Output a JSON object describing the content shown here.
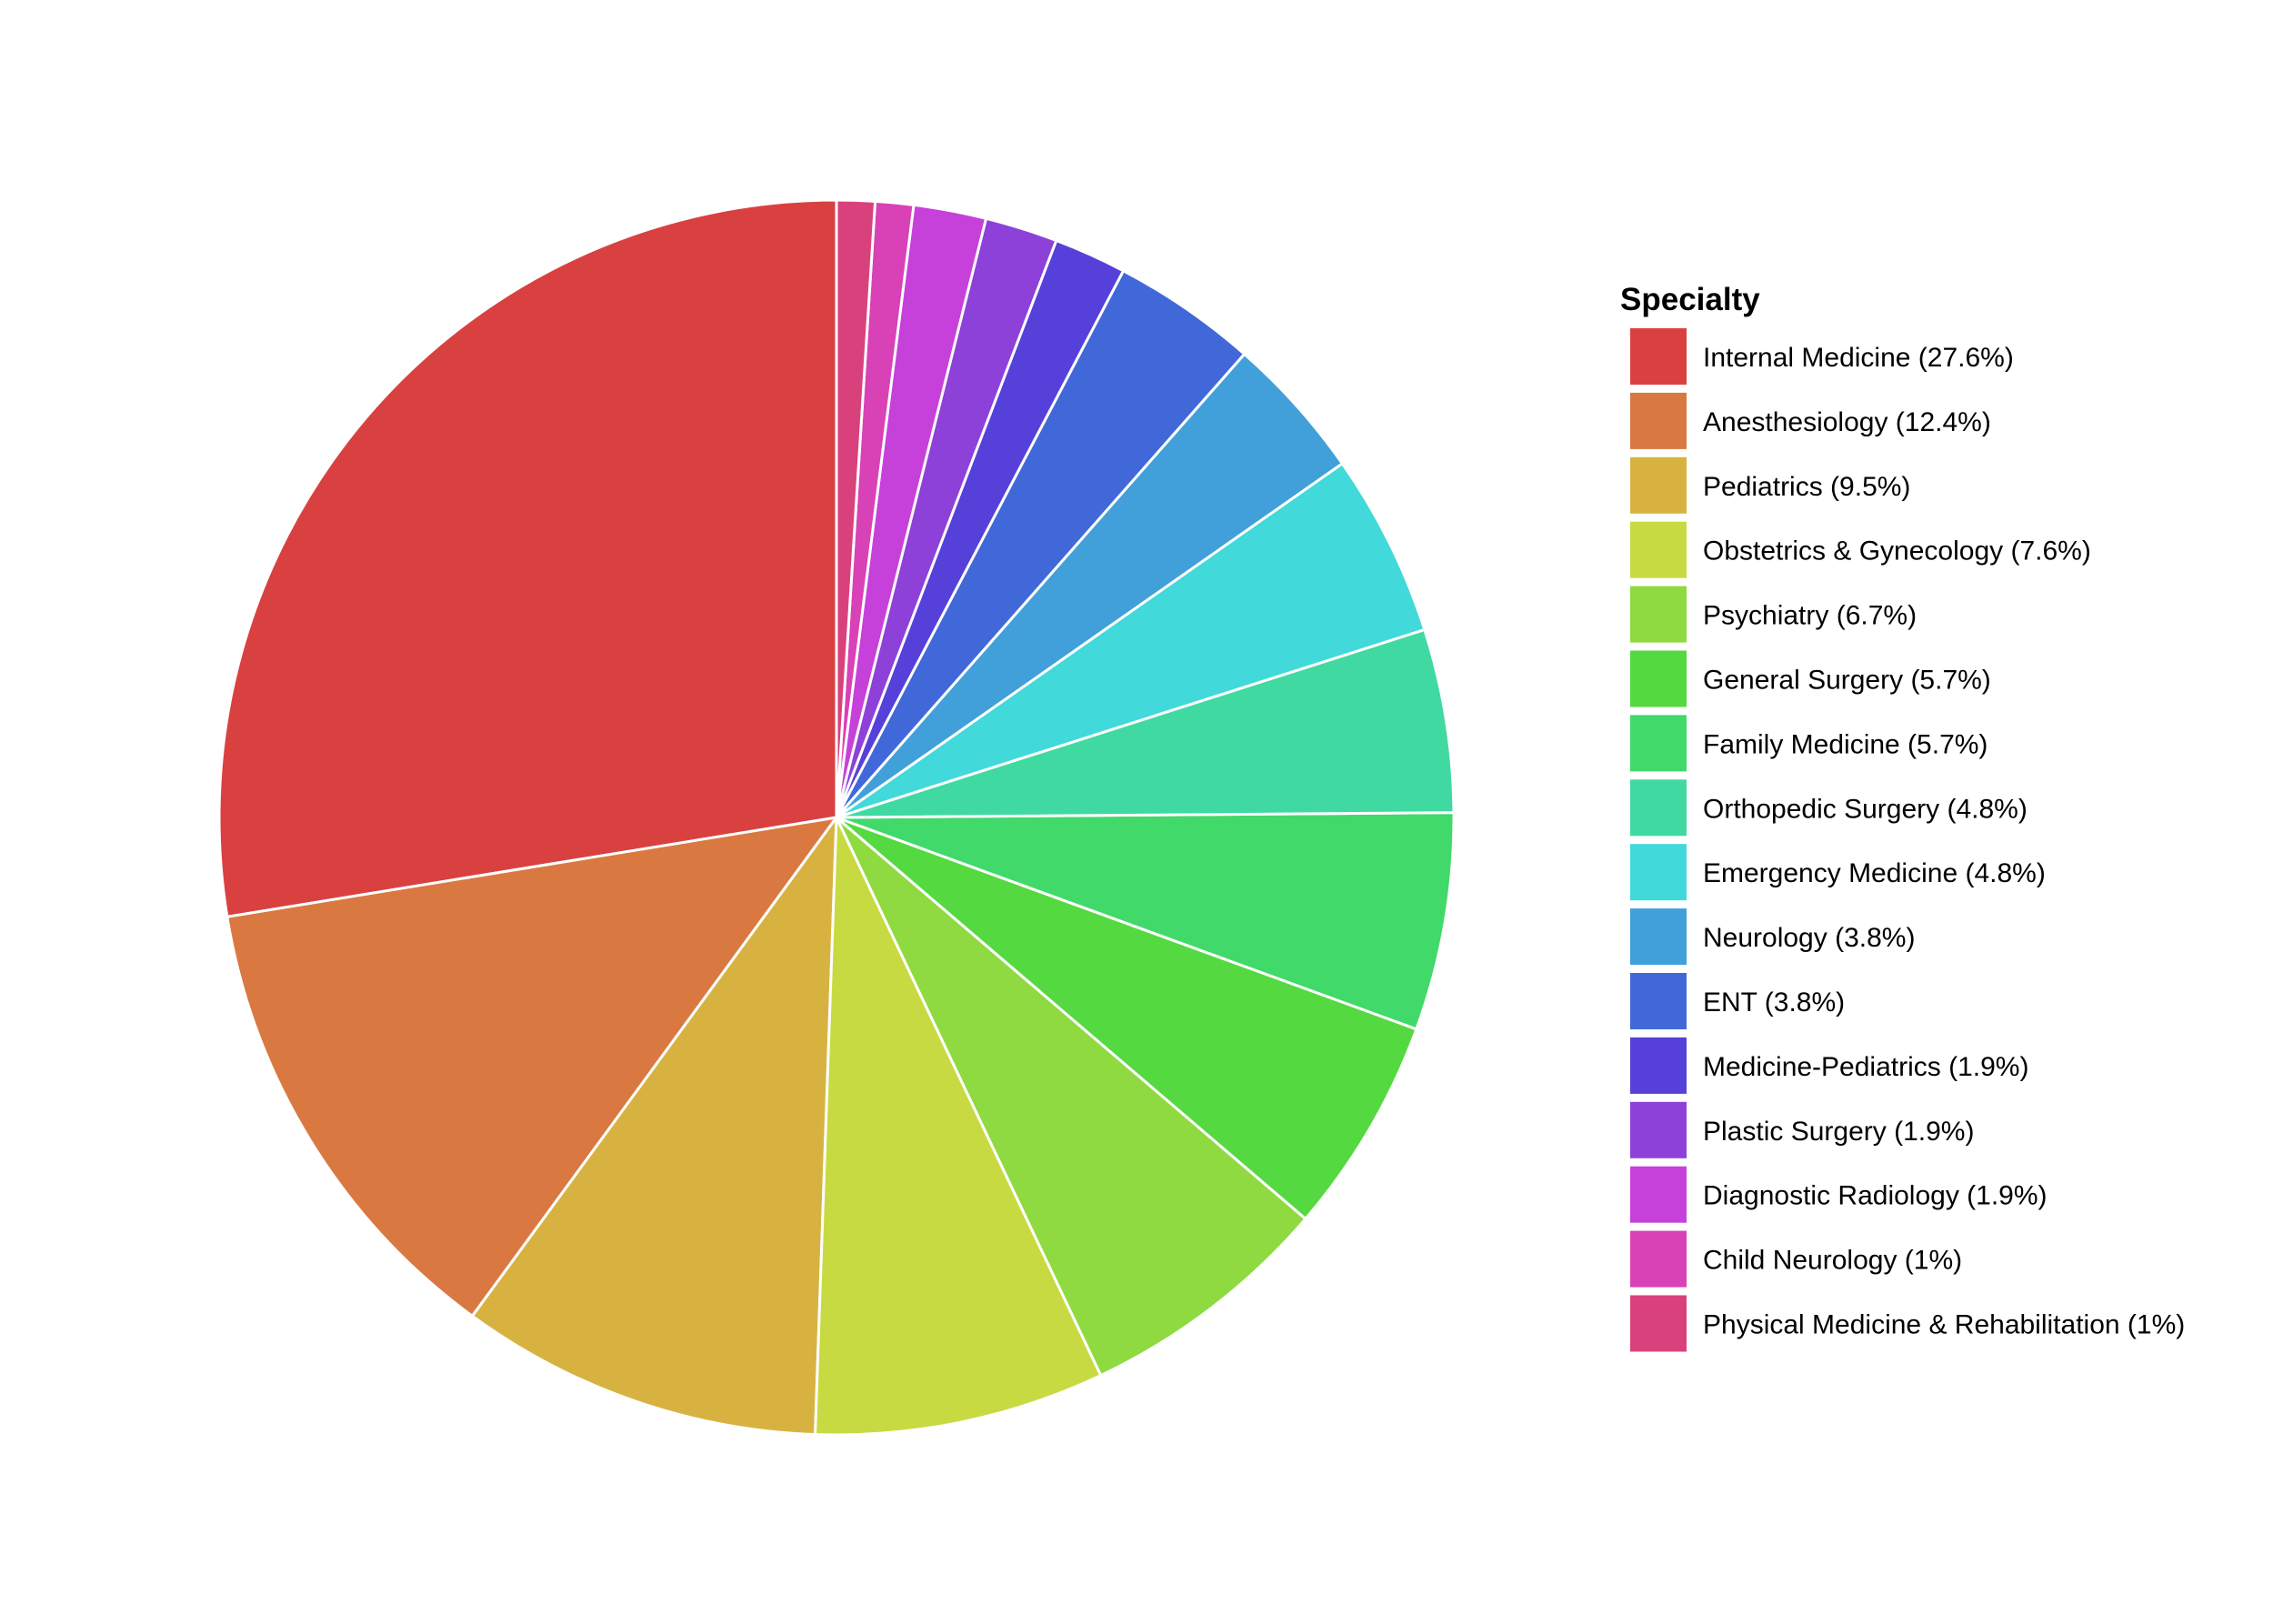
{
  "chart_data": {
    "type": "pie",
    "legend_title": "Specialty",
    "legend_position": "right",
    "start": "12 o'clock",
    "direction": "counterclockwise",
    "categories": [
      "Internal Medicine (27.6%)",
      "Anesthesiology (12.4%)",
      "Pediatrics (9.5%)",
      "Obstetrics & Gynecology (7.6%)",
      "Psychiatry (6.7%)",
      "General Surgery (5.7%)",
      "Family Medicine (5.7%)",
      "Orthopedic Surgery (4.8%)",
      "Emergency Medicine (4.8%)",
      "Neurology (3.8%)",
      "ENT (3.8%)",
      "Medicine-Pediatrics (1.9%)",
      "Plastic Surgery (1.9%)",
      "Diagnostic Radiology (1.9%)",
      "Child Neurology (1%)",
      "Physical Medicine & Rehabilitation (1%)"
    ],
    "values": [
      27.6,
      12.4,
      9.5,
      7.6,
      6.7,
      5.7,
      5.7,
      4.8,
      4.8,
      3.8,
      3.8,
      1.9,
      1.9,
      1.9,
      1.0,
      1.0
    ],
    "colors": [
      "#D94141",
      "#D97941",
      "#D8B241",
      "#C8DA41",
      "#8FDA41",
      "#55D941",
      "#41D96A",
      "#41D9A2",
      "#41D9D9",
      "#41A0D9",
      "#4168D9",
      "#5541D9",
      "#8D41D9",
      "#C641D9",
      "#D941B6",
      "#D9417D"
    ]
  }
}
